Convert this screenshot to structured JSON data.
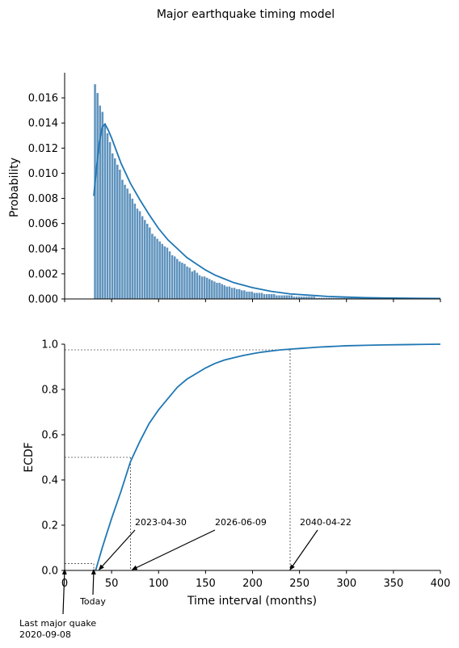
{
  "figure_title": "Major earthquake timing model",
  "chart_data": [
    {
      "type": "bar",
      "panel": "top",
      "xlabel": "",
      "ylabel": "Probability",
      "xlim": [
        0,
        400
      ],
      "ylim": [
        0,
        0.018
      ],
      "yticks": [
        0.0,
        0.002,
        0.004,
        0.006,
        0.008,
        0.01,
        0.012,
        0.014,
        0.016
      ],
      "ytick_labels": [
        "0.000",
        "0.002",
        "0.004",
        "0.006",
        "0.008",
        "0.010",
        "0.012",
        "0.014",
        "0.016"
      ],
      "xticks": [
        0,
        50,
        100,
        150,
        200,
        250,
        300,
        350,
        400
      ],
      "histogram": {
        "bin_start": 31,
        "bin_width": 2.65,
        "values": [
          0.0171,
          0.0164,
          0.0154,
          0.0149,
          0.014,
          0.0132,
          0.0125,
          0.0116,
          0.0112,
          0.0107,
          0.0103,
          0.0095,
          0.0091,
          0.0088,
          0.0084,
          0.008,
          0.0076,
          0.0072,
          0.007,
          0.0066,
          0.0063,
          0.006,
          0.0057,
          0.0052,
          0.005,
          0.0048,
          0.0046,
          0.0044,
          0.0042,
          0.0041,
          0.0038,
          0.0035,
          0.0034,
          0.0032,
          0.003,
          0.0029,
          0.0028,
          0.0026,
          0.0025,
          0.0022,
          0.0023,
          0.0021,
          0.0019,
          0.0018,
          0.0018,
          0.0017,
          0.0016,
          0.0015,
          0.0014,
          0.0013,
          0.0013,
          0.0012,
          0.0011,
          0.001,
          0.001,
          0.0009,
          0.0009,
          0.0008,
          0.0008,
          0.0007,
          0.0007,
          0.0006,
          0.0006,
          0.0006,
          0.0005,
          0.0005,
          0.0005,
          0.0005,
          0.0004,
          0.0004,
          0.0004,
          0.0004,
          0.0004,
          0.0003,
          0.0003,
          0.0003,
          0.0003,
          0.0003,
          0.0003,
          0.0003,
          0.0002,
          0.0002,
          0.0002,
          0.0002,
          0.0002,
          0.0002,
          0.0002,
          0.0002,
          0.0002,
          0.0001,
          0.0001,
          0.0001,
          0.0001,
          0.0001,
          0.0001,
          0.0001,
          0.0001,
          0.0001,
          0.0001,
          0.0001,
          0.0001,
          0.0001,
          0.0001,
          0.0001,
          0.0001,
          0.0001,
          0.0001,
          0.0001,
          0.0001,
          0.0001,
          0.0001,
          0.0001,
          0.0001,
          0.0001,
          0.0001,
          0.0001,
          0.0001,
          0.0001,
          0.0001,
          0.0001,
          0.0001,
          0.0001,
          0.0001,
          0.0001,
          0.0001,
          0.0001,
          0.0001,
          0.0001,
          0.0001,
          0.0001,
          0.0001,
          0.0001,
          0.0001,
          0.0001
        ]
      },
      "kde": {
        "x": [
          31,
          34,
          37,
          40,
          43,
          46,
          50,
          55,
          60,
          70,
          80,
          90,
          100,
          110,
          120,
          130,
          140,
          150,
          160,
          170,
          180,
          190,
          200,
          220,
          240,
          260,
          280,
          300,
          320,
          340,
          360,
          380,
          400
        ],
        "y": [
          0.0082,
          0.0105,
          0.0125,
          0.0137,
          0.0139,
          0.0135,
          0.0128,
          0.0118,
          0.0108,
          0.0092,
          0.0079,
          0.0067,
          0.0056,
          0.0047,
          0.004,
          0.0033,
          0.0028,
          0.0023,
          0.0019,
          0.0016,
          0.0013,
          0.0011,
          0.0009,
          0.0006,
          0.0004,
          0.0003,
          0.0002,
          0.00015,
          0.0001,
          8e-05,
          6e-05,
          5e-05,
          4e-05
        ]
      },
      "colors": {
        "bar_fill": "#5f93bd",
        "bar_edge": "#ffffff",
        "kde": "#1f77b4"
      },
      "grid": false
    },
    {
      "type": "line",
      "panel": "bottom",
      "xlabel": "Time interval (months)",
      "ylabel": "ECDF",
      "xlim": [
        0,
        400
      ],
      "ylim": [
        0,
        1.0
      ],
      "xticks": [
        0,
        50,
        100,
        150,
        200,
        250,
        300,
        350,
        400
      ],
      "xtick_labels": [
        "0",
        "50",
        "100",
        "150",
        "200",
        "250",
        "300",
        "350",
        "400"
      ],
      "yticks": [
        0.0,
        0.2,
        0.4,
        0.6,
        0.8,
        1.0
      ],
      "ytick_labels": [
        "0.0",
        "0.2",
        "0.4",
        "0.6",
        "0.8",
        "1.0"
      ],
      "series": [
        {
          "x": [
            33,
            40,
            50,
            60,
            70,
            80,
            90,
            100,
            110,
            120,
            130,
            140,
            150,
            160,
            170,
            180,
            190,
            200,
            210,
            220,
            230,
            240,
            250,
            260,
            270,
            280,
            290,
            300,
            320,
            340,
            360,
            380,
            400
          ],
          "y": [
            0.0,
            0.1,
            0.23,
            0.35,
            0.48,
            0.57,
            0.65,
            0.71,
            0.76,
            0.81,
            0.845,
            0.87,
            0.895,
            0.915,
            0.93,
            0.94,
            0.95,
            0.958,
            0.965,
            0.97,
            0.975,
            0.978,
            0.981,
            0.984,
            0.987,
            0.989,
            0.991,
            0.993,
            0.995,
            0.997,
            0.998,
            0.999,
            1.0
          ]
        }
      ],
      "reference_lines": [
        {
          "x": 31,
          "y": 0.03
        },
        {
          "x": 70,
          "y": 0.5
        },
        {
          "x": 240,
          "y": 0.975
        }
      ],
      "annotations": [
        {
          "text": "2023-04-30",
          "x": 35,
          "y": 0.0
        },
        {
          "text": "2026-06-09",
          "x": 72,
          "y": 0.0
        },
        {
          "text": "2040-04-22",
          "x": 240,
          "y": 0.0
        },
        {
          "text": "Today",
          "x": 31,
          "y": 0.0
        },
        {
          "text": "Last major quake\n2020-09-08",
          "x": 0,
          "y": 0.0
        }
      ],
      "colors": {
        "line": "#1f77b4",
        "refline": "#000000",
        "arrow": "#000000"
      },
      "grid": false
    }
  ]
}
